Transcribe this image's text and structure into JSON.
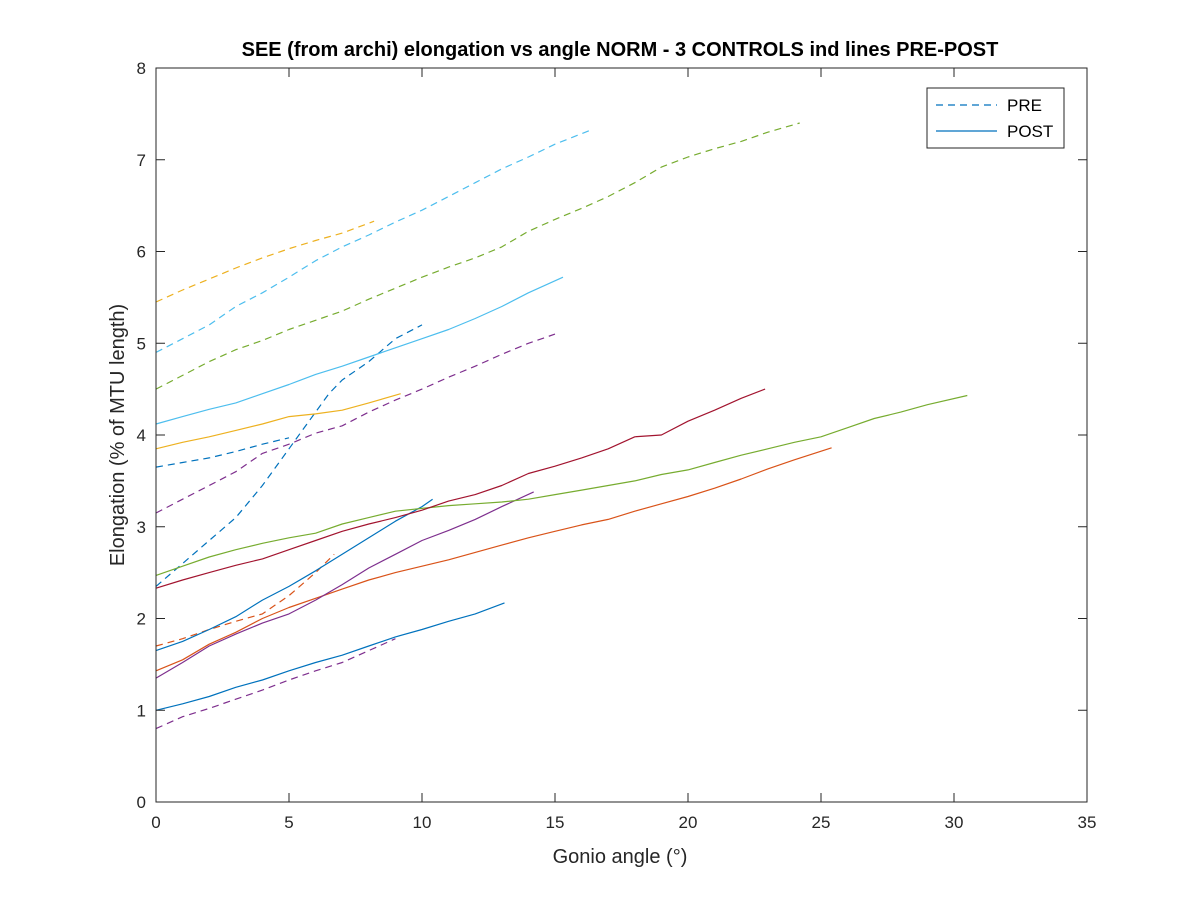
{
  "chart_data": {
    "type": "line",
    "title": "SEE (from archi) elongation vs angle NORM - 3 CONTROLS ind lines PRE-POST",
    "xlabel": "Gonio angle (°)",
    "ylabel": "Elongation (% of MTU length)",
    "xlim": [
      0,
      35
    ],
    "ylim": [
      0,
      8
    ],
    "xticks": [
      0,
      5,
      10,
      15,
      20,
      25,
      30,
      35
    ],
    "yticks": [
      0,
      1,
      2,
      3,
      4,
      5,
      6,
      7,
      8
    ],
    "xtick_labels": [
      "0",
      "5",
      "10",
      "15",
      "20",
      "25",
      "30",
      "35"
    ],
    "ytick_labels": [
      "0",
      "1",
      "2",
      "3",
      "4",
      "5",
      "6",
      "7",
      "8"
    ],
    "grid": false,
    "legend": {
      "placement": "top-right",
      "entries": [
        {
          "label": "PRE",
          "style": "dashed",
          "color": "#0072BD"
        },
        {
          "label": "POST",
          "style": "solid",
          "color": "#0072BD"
        }
      ]
    },
    "series": [
      {
        "style": "dashed",
        "color": "#0072BD",
        "x": [
          0,
          1,
          2,
          3,
          4,
          5,
          5.5,
          6,
          6.5,
          7,
          8,
          9,
          10
        ],
        "y": [
          2.35,
          2.6,
          2.85,
          3.1,
          3.45,
          3.85,
          4.05,
          4.25,
          4.45,
          4.6,
          4.8,
          5.05,
          5.2
        ]
      },
      {
        "style": "dashed",
        "color": "#0072BD",
        "x": [
          0,
          1,
          2,
          3,
          4,
          5
        ],
        "y": [
          3.65,
          3.7,
          3.75,
          3.82,
          3.9,
          3.97
        ]
      },
      {
        "style": "dashed",
        "color": "#D95319",
        "x": [
          0,
          1,
          2,
          3,
          4,
          5,
          6,
          6.7
        ],
        "y": [
          1.7,
          1.78,
          1.88,
          1.97,
          2.05,
          2.25,
          2.5,
          2.7
        ]
      },
      {
        "style": "dashed",
        "color": "#EDB120",
        "x": [
          0,
          1,
          2,
          3,
          4,
          5,
          6,
          7,
          8.2
        ],
        "y": [
          5.45,
          5.58,
          5.7,
          5.82,
          5.93,
          6.03,
          6.12,
          6.2,
          6.33
        ]
      },
      {
        "style": "dashed",
        "color": "#7E2F8E",
        "x": [
          0,
          1,
          2,
          3,
          4,
          5,
          6,
          7,
          8,
          9,
          10,
          11,
          12,
          13,
          14,
          15
        ],
        "y": [
          3.15,
          3.3,
          3.45,
          3.6,
          3.8,
          3.9,
          4.02,
          4.1,
          4.25,
          4.38,
          4.5,
          4.63,
          4.75,
          4.88,
          5.0,
          5.1
        ]
      },
      {
        "style": "dashed",
        "color": "#7E2F8E",
        "x": [
          0,
          1,
          2,
          3,
          4,
          5,
          6,
          7,
          8,
          9
        ],
        "y": [
          0.8,
          0.93,
          1.02,
          1.12,
          1.22,
          1.33,
          1.43,
          1.52,
          1.65,
          1.78
        ]
      },
      {
        "style": "dashed",
        "color": "#77AC30",
        "x": [
          0,
          1,
          2,
          3,
          4,
          5,
          6,
          7,
          8,
          9,
          10,
          11,
          12,
          13,
          14,
          15,
          16,
          17,
          18,
          19,
          20,
          21,
          22,
          23,
          24.2
        ],
        "y": [
          4.5,
          4.65,
          4.8,
          4.93,
          5.03,
          5.15,
          5.25,
          5.35,
          5.48,
          5.6,
          5.72,
          5.83,
          5.93,
          6.05,
          6.22,
          6.35,
          6.47,
          6.6,
          6.75,
          6.92,
          7.03,
          7.12,
          7.2,
          7.3,
          7.4
        ]
      },
      {
        "style": "dashed",
        "color": "#4DBEEE",
        "x": [
          0,
          1,
          2,
          3,
          4,
          5,
          6,
          7,
          8,
          9,
          10,
          11,
          12,
          13,
          14,
          15,
          16.4
        ],
        "y": [
          4.9,
          5.05,
          5.2,
          5.4,
          5.55,
          5.72,
          5.9,
          6.05,
          6.18,
          6.32,
          6.45,
          6.6,
          6.75,
          6.9,
          7.03,
          7.17,
          7.33
        ]
      },
      {
        "style": "solid",
        "color": "#0072BD",
        "x": [
          0,
          1,
          2,
          3,
          4,
          5,
          6,
          7,
          8,
          9,
          10,
          10.4
        ],
        "y": [
          1.65,
          1.75,
          1.88,
          2.02,
          2.2,
          2.35,
          2.52,
          2.7,
          2.88,
          3.06,
          3.22,
          3.3
        ]
      },
      {
        "style": "solid",
        "color": "#0072BD",
        "x": [
          0,
          1,
          2,
          3,
          4,
          5,
          6,
          7,
          8,
          9,
          10,
          11,
          12,
          13.1
        ],
        "y": [
          1.0,
          1.07,
          1.15,
          1.25,
          1.33,
          1.43,
          1.52,
          1.6,
          1.7,
          1.8,
          1.88,
          1.97,
          2.05,
          2.17
        ]
      },
      {
        "style": "solid",
        "color": "#D95319",
        "x": [
          0,
          1,
          2,
          3,
          4,
          5,
          6,
          7,
          8,
          9,
          10,
          11,
          12,
          13,
          14,
          15,
          16,
          17,
          18,
          19,
          20,
          21,
          22,
          23,
          24,
          25.4
        ],
        "y": [
          1.43,
          1.55,
          1.72,
          1.85,
          2.0,
          2.12,
          2.22,
          2.32,
          2.42,
          2.5,
          2.57,
          2.64,
          2.72,
          2.8,
          2.88,
          2.95,
          3.02,
          3.08,
          3.17,
          3.25,
          3.33,
          3.42,
          3.52,
          3.63,
          3.73,
          3.86
        ]
      },
      {
        "style": "solid",
        "color": "#EDB120",
        "x": [
          0,
          1,
          2,
          3,
          4,
          5,
          6,
          7,
          8,
          9.2
        ],
        "y": [
          3.85,
          3.92,
          3.98,
          4.05,
          4.12,
          4.2,
          4.23,
          4.27,
          4.35,
          4.45
        ]
      },
      {
        "style": "solid",
        "color": "#7E2F8E",
        "x": [
          0,
          1,
          2,
          3,
          4,
          5,
          6,
          7,
          8,
          9,
          10,
          11,
          12,
          13,
          14.2
        ],
        "y": [
          1.35,
          1.52,
          1.7,
          1.83,
          1.95,
          2.05,
          2.2,
          2.37,
          2.55,
          2.7,
          2.85,
          2.96,
          3.08,
          3.22,
          3.38
        ]
      },
      {
        "style": "solid",
        "color": "#77AC30",
        "x": [
          0,
          1,
          2,
          3,
          4,
          5,
          6,
          7,
          8,
          9,
          10,
          11,
          12,
          13,
          14,
          15,
          16,
          17,
          18,
          19,
          20,
          21,
          22,
          23,
          24,
          25,
          26,
          27,
          28,
          29,
          30.5
        ],
        "y": [
          2.47,
          2.57,
          2.67,
          2.75,
          2.82,
          2.88,
          2.93,
          3.03,
          3.1,
          3.17,
          3.2,
          3.23,
          3.25,
          3.27,
          3.3,
          3.35,
          3.4,
          3.45,
          3.5,
          3.57,
          3.62,
          3.7,
          3.78,
          3.85,
          3.92,
          3.98,
          4.08,
          4.18,
          4.25,
          4.33,
          4.43
        ]
      },
      {
        "style": "solid",
        "color": "#4DBEEE",
        "x": [
          0,
          1,
          2,
          3,
          4,
          5,
          6,
          7,
          8,
          9,
          10,
          11,
          12,
          13,
          14,
          15.3
        ],
        "y": [
          4.12,
          4.2,
          4.28,
          4.35,
          4.45,
          4.55,
          4.66,
          4.75,
          4.85,
          4.95,
          5.05,
          5.15,
          5.27,
          5.4,
          5.55,
          5.72
        ]
      },
      {
        "style": "solid",
        "color": "#A2142F",
        "x": [
          0,
          1,
          2,
          3,
          4,
          5,
          6,
          7,
          8,
          9,
          10,
          11,
          12,
          13,
          14,
          15,
          16,
          17,
          18,
          19,
          20,
          21,
          22,
          22.9
        ],
        "y": [
          2.33,
          2.42,
          2.5,
          2.58,
          2.65,
          2.75,
          2.85,
          2.95,
          3.03,
          3.1,
          3.18,
          3.28,
          3.35,
          3.45,
          3.58,
          3.66,
          3.75,
          3.85,
          3.98,
          4.0,
          4.15,
          4.27,
          4.4,
          4.5
        ]
      }
    ]
  }
}
